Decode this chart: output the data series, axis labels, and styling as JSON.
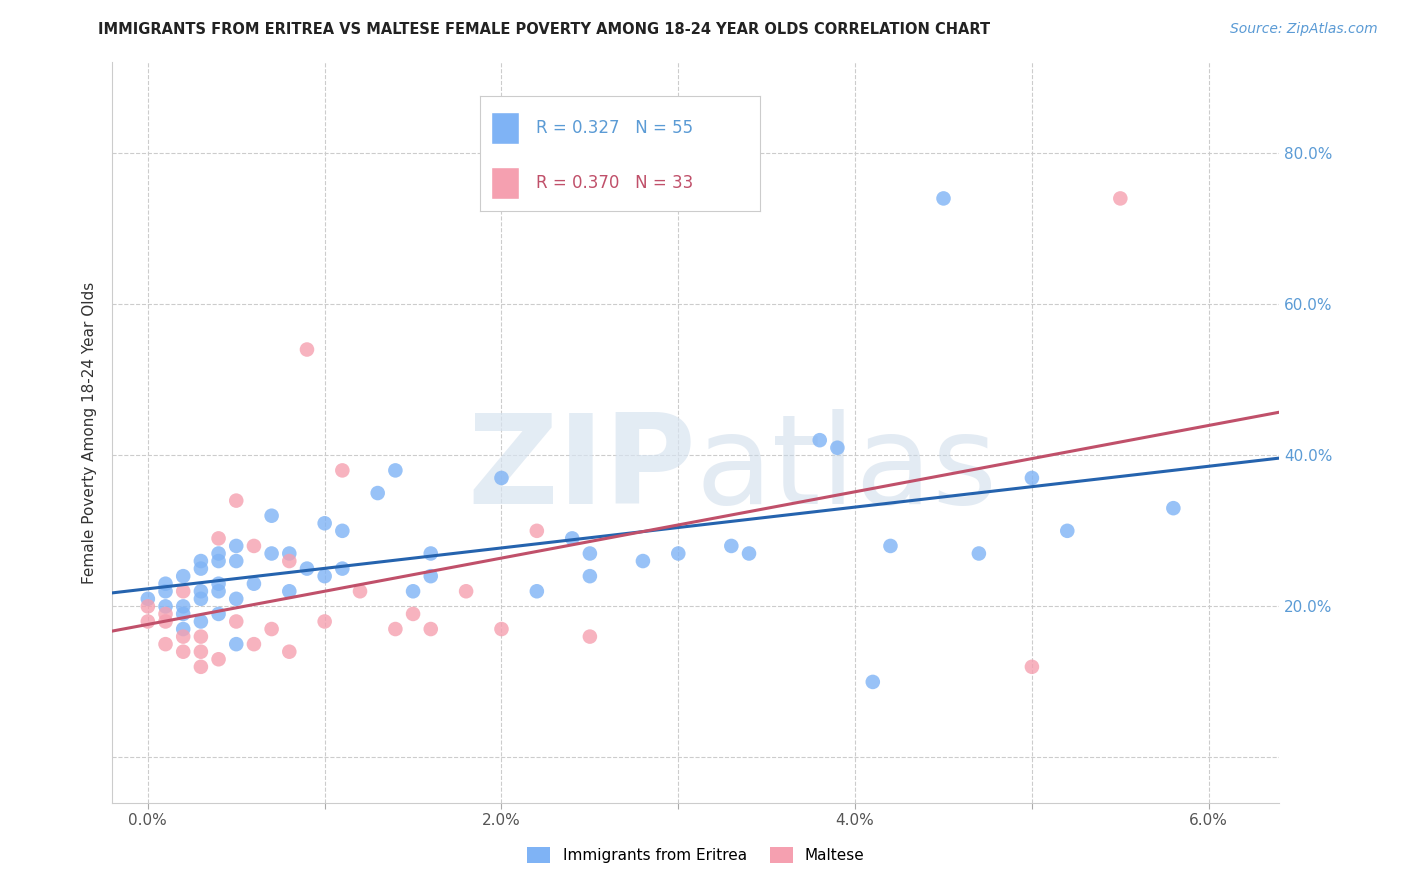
{
  "title": "IMMIGRANTS FROM ERITREA VS MALTESE FEMALE POVERTY AMONG 18-24 YEAR OLDS CORRELATION CHART",
  "source": "Source: ZipAtlas.com",
  "ylabel": "Female Poverty Among 18-24 Year Olds",
  "x_ticks": [
    0.0,
    0.01,
    0.02,
    0.03,
    0.04,
    0.05,
    0.06
  ],
  "x_tick_labels": [
    "0.0%",
    "",
    "2.0%",
    "",
    "4.0%",
    "",
    "6.0%"
  ],
  "y_ticks": [
    0.0,
    0.2,
    0.4,
    0.6,
    0.8
  ],
  "y_tick_labels_right": [
    "",
    "20.0%",
    "40.0%",
    "60.0%",
    "80.0%"
  ],
  "xlim": [
    -0.002,
    0.064
  ],
  "ylim": [
    -0.06,
    0.92
  ],
  "series1_color": "#7fb3f5",
  "series2_color": "#f5a0b0",
  "series1_label": "Immigrants from Eritrea",
  "series2_label": "Maltese",
  "legend_r1": "R = 0.327",
  "legend_n1": "N = 55",
  "legend_r2": "R = 0.370",
  "legend_n2": "N = 33",
  "line1_color": "#2563ae",
  "line2_color": "#c0506a",
  "watermark_zip": "ZIP",
  "watermark_atlas": "atlas",
  "series1_x": [
    0.0,
    0.001,
    0.001,
    0.001,
    0.002,
    0.002,
    0.002,
    0.002,
    0.003,
    0.003,
    0.003,
    0.003,
    0.003,
    0.004,
    0.004,
    0.004,
    0.004,
    0.004,
    0.005,
    0.005,
    0.005,
    0.005,
    0.006,
    0.007,
    0.007,
    0.008,
    0.008,
    0.009,
    0.01,
    0.01,
    0.011,
    0.011,
    0.013,
    0.014,
    0.015,
    0.016,
    0.016,
    0.02,
    0.022,
    0.024,
    0.025,
    0.025,
    0.028,
    0.03,
    0.033,
    0.034,
    0.038,
    0.039,
    0.041,
    0.042,
    0.045,
    0.047,
    0.05,
    0.052,
    0.058
  ],
  "series1_y": [
    0.21,
    0.22,
    0.2,
    0.23,
    0.24,
    0.2,
    0.19,
    0.17,
    0.26,
    0.25,
    0.22,
    0.21,
    0.18,
    0.26,
    0.27,
    0.23,
    0.22,
    0.19,
    0.28,
    0.26,
    0.21,
    0.15,
    0.23,
    0.32,
    0.27,
    0.27,
    0.22,
    0.25,
    0.31,
    0.24,
    0.3,
    0.25,
    0.35,
    0.38,
    0.22,
    0.27,
    0.24,
    0.37,
    0.22,
    0.29,
    0.27,
    0.24,
    0.26,
    0.27,
    0.28,
    0.27,
    0.42,
    0.41,
    0.1,
    0.28,
    0.74,
    0.27,
    0.37,
    0.3,
    0.33
  ],
  "series2_x": [
    0.0,
    0.0,
    0.001,
    0.001,
    0.001,
    0.002,
    0.002,
    0.002,
    0.003,
    0.003,
    0.003,
    0.004,
    0.004,
    0.005,
    0.005,
    0.006,
    0.006,
    0.007,
    0.008,
    0.008,
    0.009,
    0.01,
    0.011,
    0.012,
    0.014,
    0.015,
    0.016,
    0.018,
    0.02,
    0.022,
    0.025,
    0.05,
    0.055
  ],
  "series2_y": [
    0.2,
    0.18,
    0.19,
    0.18,
    0.15,
    0.22,
    0.16,
    0.14,
    0.16,
    0.14,
    0.12,
    0.29,
    0.13,
    0.34,
    0.18,
    0.28,
    0.15,
    0.17,
    0.26,
    0.14,
    0.54,
    0.18,
    0.38,
    0.22,
    0.17,
    0.19,
    0.17,
    0.22,
    0.17,
    0.3,
    0.16,
    0.12,
    0.74
  ],
  "background_color": "#ffffff",
  "grid_color": "#cccccc"
}
